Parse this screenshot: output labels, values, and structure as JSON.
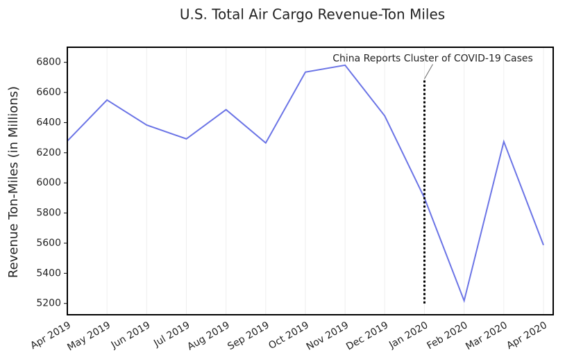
{
  "chart_data": {
    "type": "line",
    "title": "U.S. Total Air Cargo Revenue-Ton Miles",
    "y_label": "Revenue Ton-Miles (in Millions)",
    "categories": [
      "Apr 2019",
      "May 2019",
      "Jun 2019",
      "Jul 2019",
      "Aug 2019",
      "Sep 2019",
      "Oct 2019",
      "Nov 2019",
      "Dec 2019",
      "Jan 2020",
      "Feb 2020",
      "Mar 2020",
      "Apr 2020"
    ],
    "series": [
      {
        "name": "Revenue Ton-Miles",
        "color": "#6b74e6",
        "values": [
          6278,
          6550,
          6384,
          6292,
          6486,
          6265,
          6735,
          6781,
          6444,
          5900,
          5218,
          6274,
          5587
        ]
      }
    ],
    "ylim": [
      5125,
      6900
    ],
    "yticks": [
      5200,
      5400,
      5600,
      5800,
      6000,
      6200,
      6400,
      6600,
      6800
    ],
    "grid": "x",
    "vline": {
      "x": "Jan 2020",
      "y": [
        5200,
        6690
      ],
      "color": "#000000",
      "annotation": "China Reports Cluster of COVID-19 Cases"
    }
  }
}
